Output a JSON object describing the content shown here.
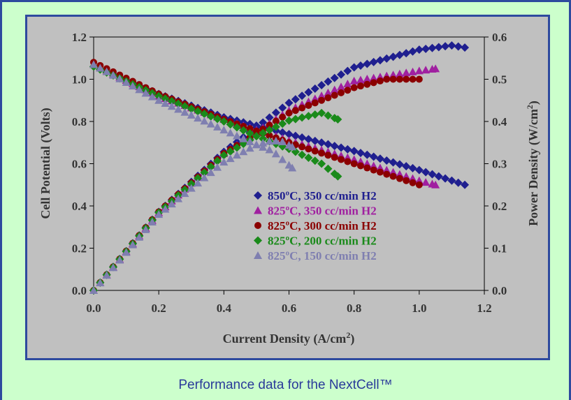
{
  "caption": "Performance data for the NextCell™",
  "chart_data": {
    "type": "scatter",
    "xlabel": "Current Density (A/cm",
    "xlabel_sup": "2",
    "xlabel_tail": ")",
    "ylabel_left": "Cell Potential (Volts)",
    "ylabel_right": "Power Density (W/cm",
    "ylabel_right_sup": "2",
    "ylabel_right_tail": ")",
    "xlim": [
      0.0,
      1.2
    ],
    "ylim_left": [
      0.0,
      1.2
    ],
    "ylim_right": [
      0.0,
      0.6
    ],
    "x_ticks": [
      "0.0",
      "0.2",
      "0.4",
      "0.6",
      "0.8",
      "1.0",
      "1.2"
    ],
    "y_left_ticks": [
      "0.0",
      "0.2",
      "0.4",
      "0.6",
      "0.8",
      "1.0",
      "1.2"
    ],
    "y_right_ticks": [
      "0.0",
      "0.1",
      "0.2",
      "0.3",
      "0.4",
      "0.5",
      "0.6"
    ],
    "legend_position": "center-right",
    "series": [
      {
        "name": "850ºC, 350 cc/min H2",
        "color": "#1f1f8f",
        "marker": "diamond",
        "voltage_curve": {
          "x_max": 1.14,
          "points": [
            [
              0.0,
              1.06
            ],
            [
              0.2,
              0.93
            ],
            [
              0.4,
              0.82
            ],
            [
              0.6,
              0.74
            ],
            [
              0.8,
              0.66
            ],
            [
              1.0,
              0.57
            ],
            [
              1.14,
              0.5
            ]
          ]
        },
        "power_curve": {
          "x_max": 1.14,
          "points": [
            [
              0.0,
              0.0
            ],
            [
              0.2,
              0.186
            ],
            [
              0.4,
              0.328
            ],
            [
              0.6,
              0.444
            ],
            [
              0.8,
              0.528
            ],
            [
              1.0,
              0.57
            ],
            [
              1.1,
              0.58
            ],
            [
              1.14,
              0.575
            ]
          ]
        }
      },
      {
        "name": "825ºC, 350 cc/min H2",
        "color": "#a020a0",
        "marker": "triangle",
        "voltage_curve": {
          "x_max": 1.05,
          "points": [
            [
              0.0,
              1.07
            ],
            [
              0.2,
              0.92
            ],
            [
              0.4,
              0.81
            ],
            [
              0.6,
              0.71
            ],
            [
              0.8,
              0.62
            ],
            [
              1.0,
              0.52
            ],
            [
              1.05,
              0.5
            ]
          ]
        },
        "power_curve": {
          "x_max": 1.05,
          "points": [
            [
              0.0,
              0.0
            ],
            [
              0.2,
              0.184
            ],
            [
              0.4,
              0.324
            ],
            [
              0.6,
              0.426
            ],
            [
              0.8,
              0.496
            ],
            [
              1.0,
              0.52
            ],
            [
              1.05,
              0.525
            ]
          ]
        }
      },
      {
        "name": "825ºC, 300 cc/min H2",
        "color": "#8b0000",
        "marker": "circle",
        "voltage_curve": {
          "x_max": 1.0,
          "points": [
            [
              0.0,
              1.08
            ],
            [
              0.2,
              0.93
            ],
            [
              0.4,
              0.81
            ],
            [
              0.6,
              0.7
            ],
            [
              0.8,
              0.6
            ],
            [
              1.0,
              0.5
            ]
          ]
        },
        "power_curve": {
          "x_max": 1.0,
          "points": [
            [
              0.0,
              0.0
            ],
            [
              0.2,
              0.186
            ],
            [
              0.4,
              0.324
            ],
            [
              0.6,
              0.42
            ],
            [
              0.8,
              0.48
            ],
            [
              0.9,
              0.5
            ],
            [
              1.0,
              0.5
            ]
          ]
        }
      },
      {
        "name": "825ºC, 200 cc/min H2",
        "color": "#1a8a1a",
        "marker": "diamond",
        "voltage_curve": {
          "x_max": 0.75,
          "points": [
            [
              0.0,
              1.06
            ],
            [
              0.2,
              0.92
            ],
            [
              0.4,
              0.8
            ],
            [
              0.5,
              0.73
            ],
            [
              0.6,
              0.67
            ],
            [
              0.7,
              0.6
            ],
            [
              0.75,
              0.54
            ]
          ]
        },
        "power_curve": {
          "x_max": 0.75,
          "points": [
            [
              0.0,
              0.0
            ],
            [
              0.2,
              0.184
            ],
            [
              0.4,
              0.32
            ],
            [
              0.5,
              0.365
            ],
            [
              0.6,
              0.402
            ],
            [
              0.7,
              0.42
            ],
            [
              0.75,
              0.405
            ]
          ]
        }
      },
      {
        "name": "825ºC, 150 cc/min H2",
        "color": "#7f7fb0",
        "marker": "triangle",
        "voltage_curve": {
          "x_max": 0.61,
          "points": [
            [
              0.0,
              1.07
            ],
            [
              0.2,
              0.9
            ],
            [
              0.4,
              0.76
            ],
            [
              0.5,
              0.69
            ],
            [
              0.55,
              0.66
            ],
            [
              0.58,
              0.62
            ],
            [
              0.61,
              0.58
            ]
          ]
        },
        "power_curve": {
          "x_max": 0.61,
          "points": [
            [
              0.0,
              0.0
            ],
            [
              0.2,
              0.18
            ],
            [
              0.4,
              0.304
            ],
            [
              0.5,
              0.345
            ],
            [
              0.55,
              0.355
            ],
            [
              0.58,
              0.352
            ],
            [
              0.61,
              0.34
            ]
          ]
        }
      }
    ]
  }
}
